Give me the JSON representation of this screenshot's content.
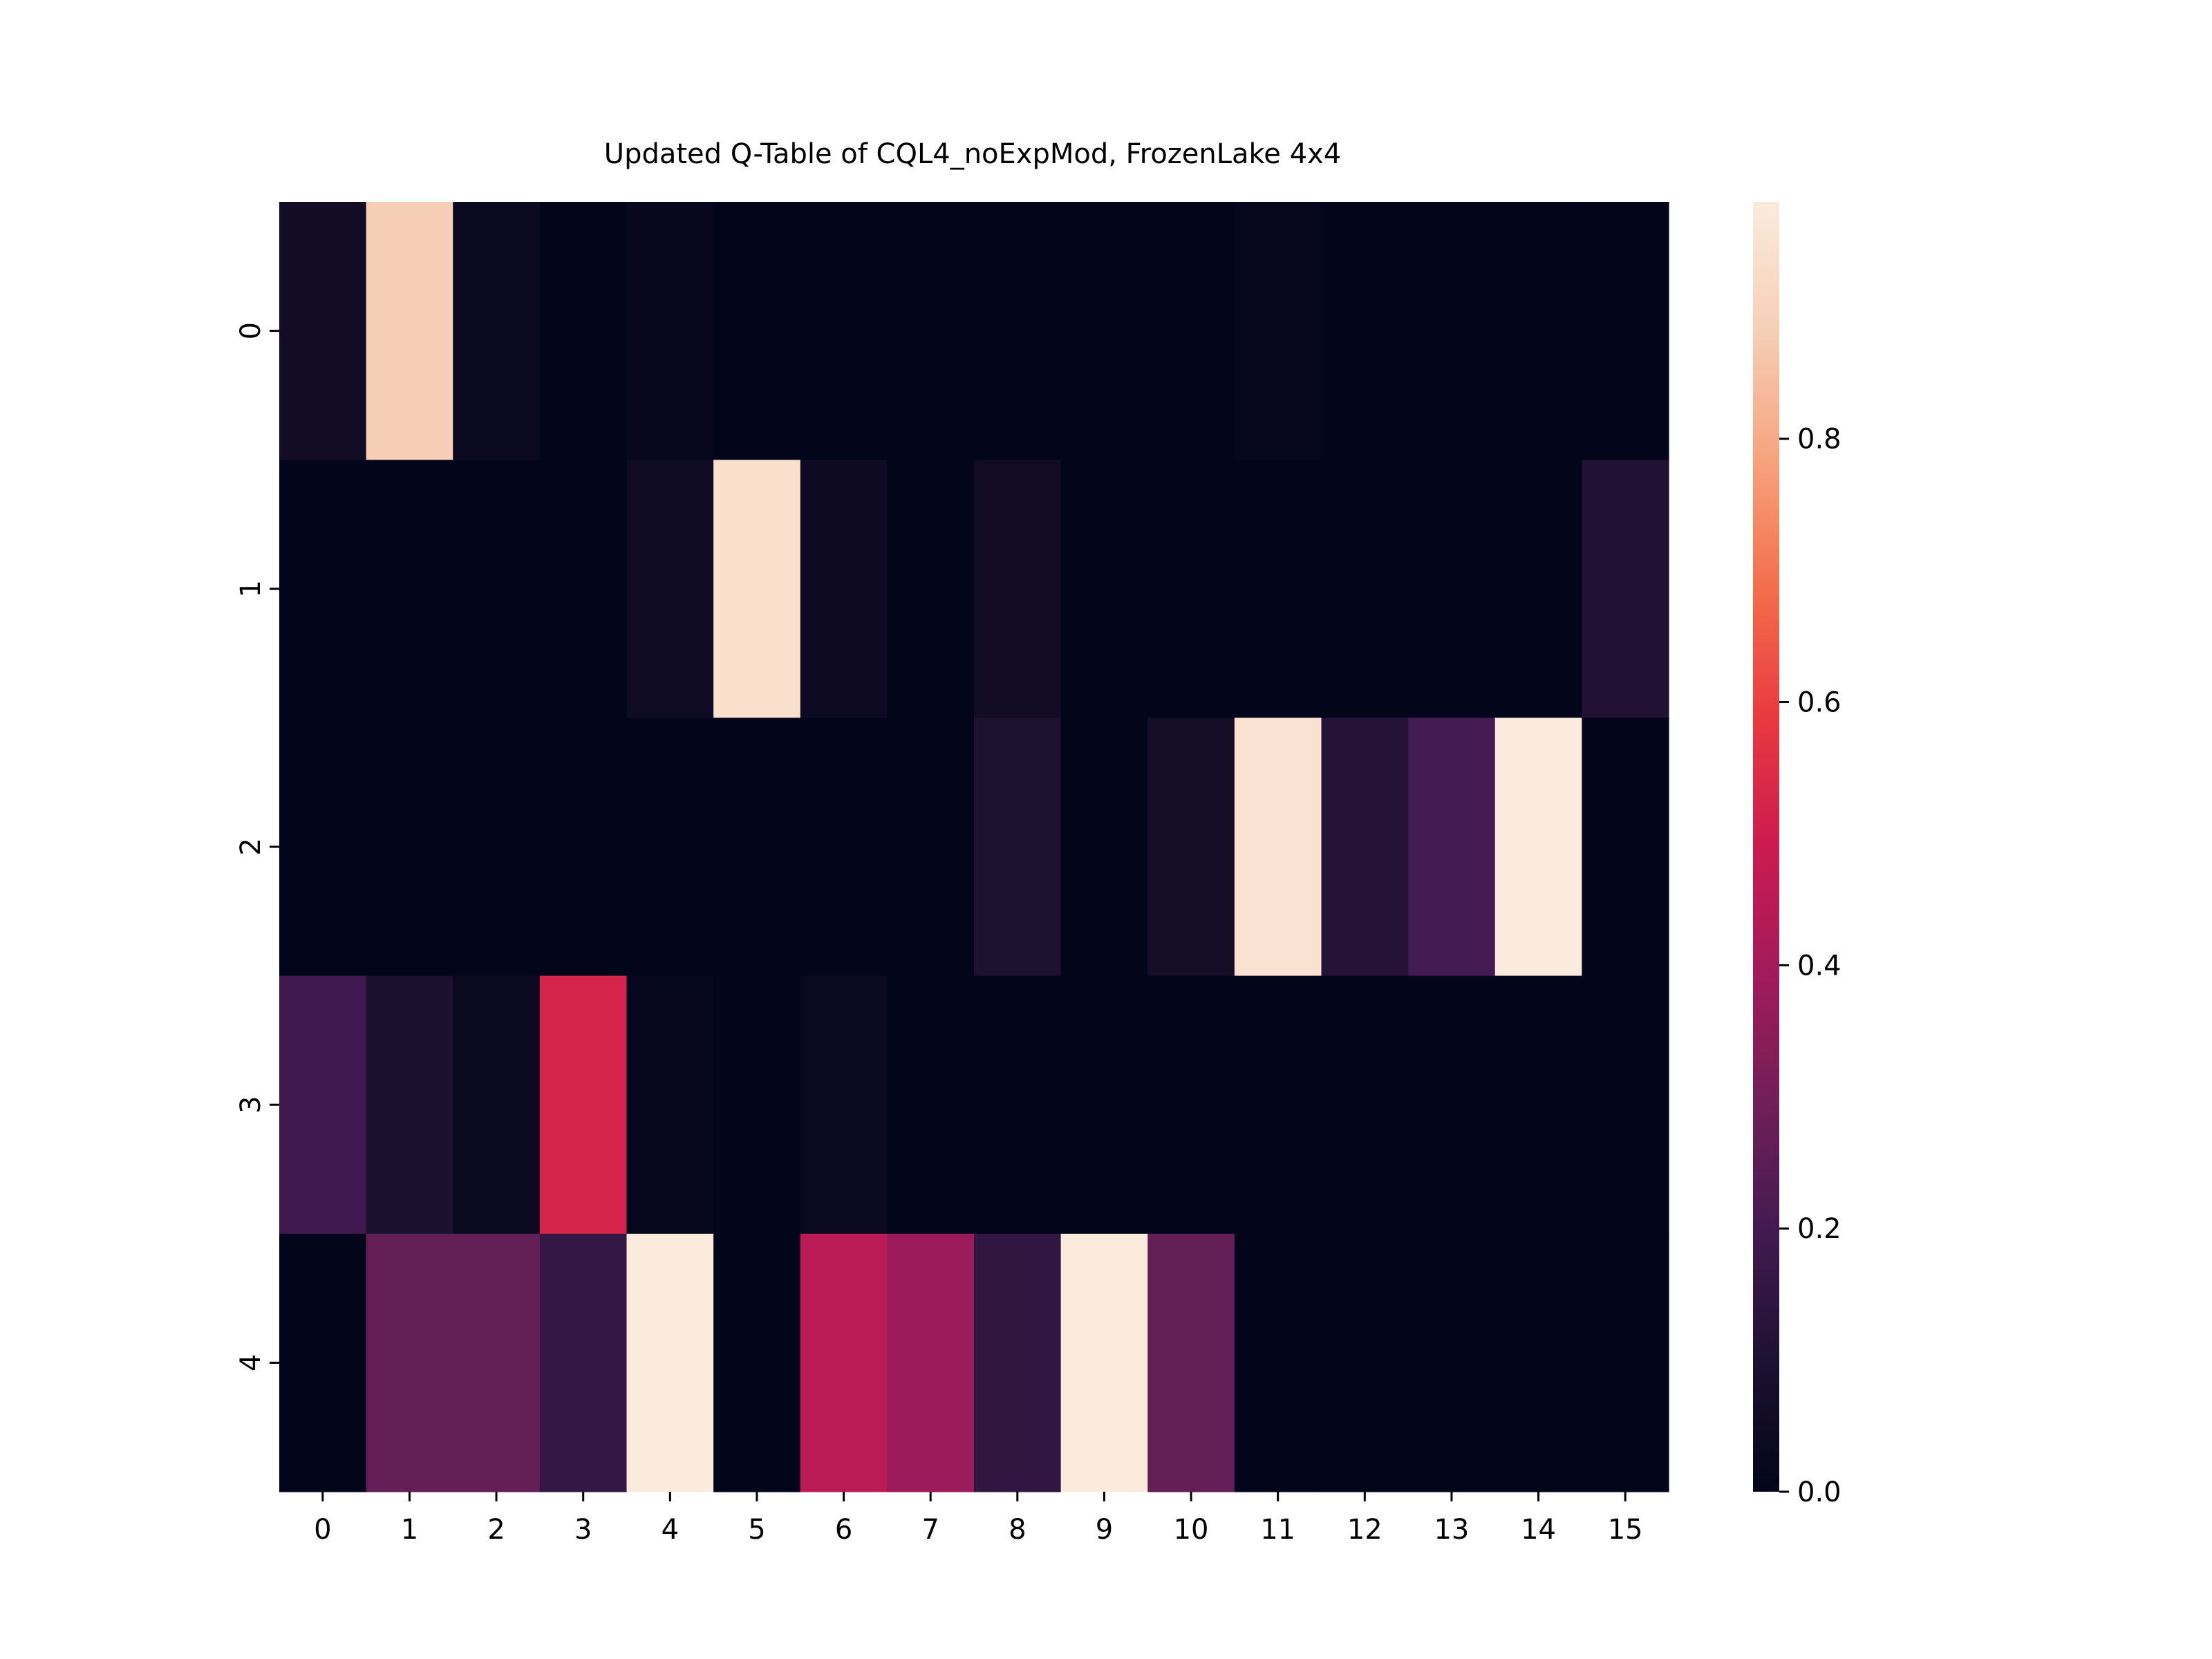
{
  "chart_data": {
    "type": "heatmap",
    "title": "Updated Q-Table of CQL4_noExpMod, FrozenLake 4x4",
    "xlabel": "",
    "ylabel": "",
    "x_categories": [
      "0",
      "1",
      "2",
      "3",
      "4",
      "5",
      "6",
      "7",
      "8",
      "9",
      "10",
      "11",
      "12",
      "13",
      "14",
      "15"
    ],
    "y_categories": [
      "0",
      "1",
      "2",
      "3",
      "4"
    ],
    "values": [
      [
        0.06,
        0.88,
        0.03,
        0.0,
        0.02,
        0.0,
        0.0,
        0.0,
        0.0,
        0.0,
        0.0,
        0.01,
        0.0,
        0.0,
        0.0,
        0.0
      ],
      [
        0.0,
        0.0,
        0.0,
        0.0,
        0.05,
        0.94,
        0.04,
        0.0,
        0.06,
        0.0,
        0.0,
        0.0,
        0.0,
        0.0,
        0.0,
        0.11
      ],
      [
        0.0,
        0.0,
        0.0,
        0.0,
        0.0,
        0.0,
        0.0,
        0.0,
        0.1,
        0.0,
        0.07,
        0.95,
        0.12,
        0.2,
        0.98,
        0.0
      ],
      [
        0.19,
        0.09,
        0.03,
        0.52,
        0.01,
        0.0,
        0.03,
        0.0,
        0.0,
        0.0,
        0.0,
        0.0,
        0.0,
        0.0,
        0.0,
        0.0
      ],
      [
        0.0,
        0.27,
        0.27,
        0.16,
        0.98,
        0.0,
        0.45,
        0.38,
        0.15,
        0.98,
        0.27,
        0.0,
        0.0,
        0.0,
        0.0,
        0.0
      ]
    ],
    "vmin": 0.0,
    "vmax": 0.98,
    "colormap": "rocket",
    "colorbar": {
      "ticks": [
        0.0,
        0.2,
        0.4,
        0.6,
        0.8
      ],
      "tick_labels": [
        "0.0",
        "0.2",
        "0.4",
        "0.6",
        "0.8"
      ]
    },
    "grid": false
  }
}
